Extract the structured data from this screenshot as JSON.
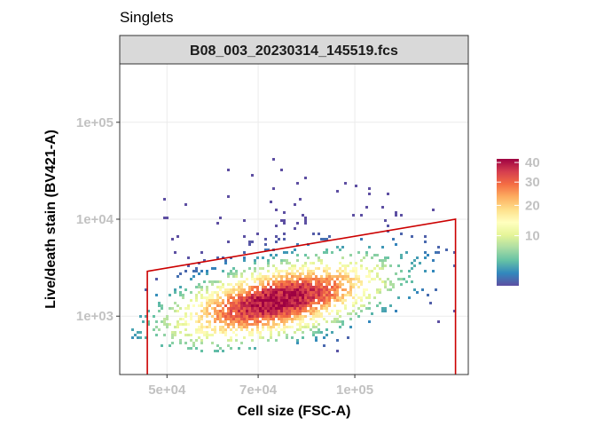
{
  "chart_data": {
    "type": "heatmap",
    "title": "Singlets",
    "facet_label": "B08_003_20230314_145519.fcs",
    "xlabel": "Cell size (FSC-A)",
    "ylabel": "Live/death stain (BV421-A)",
    "x_scale": "log",
    "y_scale": "log",
    "xlim": [
      42000,
      152000
    ],
    "ylim": [
      250,
      400000
    ],
    "x_ticks": [
      {
        "value": 50000,
        "label": "5e+04"
      },
      {
        "value": 70000,
        "label": "7e+04"
      },
      {
        "value": 100000,
        "label": "1e+05"
      }
    ],
    "y_ticks": [
      {
        "value": 1000,
        "label": "1e+03"
      },
      {
        "value": 10000,
        "label": "1e+04"
      },
      {
        "value": 100000,
        "label": "1e+05"
      }
    ],
    "grid": true,
    "colorbar": {
      "scale": "sqrt",
      "min": 1,
      "max": 42,
      "ticks": [
        10,
        20,
        30,
        40
      ],
      "palette": [
        "#5E4FA2",
        "#3288BD",
        "#66C2A5",
        "#ABDDA4",
        "#E6F598",
        "#FFFFBF",
        "#FEE08B",
        "#FDAE61",
        "#F46D43",
        "#D53E4F",
        "#9E0142"
      ],
      "position": "right"
    },
    "density_center": {
      "x": 75000,
      "y": 1500
    },
    "gate": {
      "color": "#cc0000",
      "vertices": [
        {
          "x": 46500,
          "y": 250
        },
        {
          "x": 46500,
          "y": 2900
        },
        {
          "x": 145000,
          "y": 10000
        },
        {
          "x": 145000,
          "y": 250
        }
      ]
    }
  }
}
